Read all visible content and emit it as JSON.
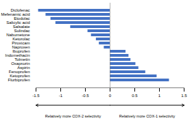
{
  "chart_data": {
    "type": "bar",
    "orientation": "horizontal",
    "categories": [
      "Diclofenac",
      "Mefenamic acid",
      "Etodolac",
      "Salicylic acid",
      "Salsalate",
      "Sulindac",
      "Nabumetone",
      "Ketorolac",
      "Piroxicam",
      "Naproxen",
      "Ibuprofen",
      "Indomethacin",
      "Tolmetin",
      "Oxaprozin",
      "Aspirin",
      "Fenoprofen",
      "Ketoprofen",
      "Flurbiprofen"
    ],
    "values": [
      -1.45,
      -1.3,
      -1.2,
      -1.1,
      -0.8,
      -0.45,
      -0.38,
      -0.28,
      -0.22,
      -0.12,
      0.32,
      0.38,
      0.42,
      0.52,
      0.58,
      0.72,
      0.95,
      1.2
    ],
    "color": "#4472C4",
    "xlim": [
      -1.5,
      1.5
    ],
    "xticks": [
      -1.5,
      -1,
      -0.5,
      0,
      0.5,
      1,
      1.5
    ],
    "grid": false,
    "annotations": [
      "Relatively more COX-2 selectivity",
      "Relatively more COX-1 selectivity"
    ]
  }
}
